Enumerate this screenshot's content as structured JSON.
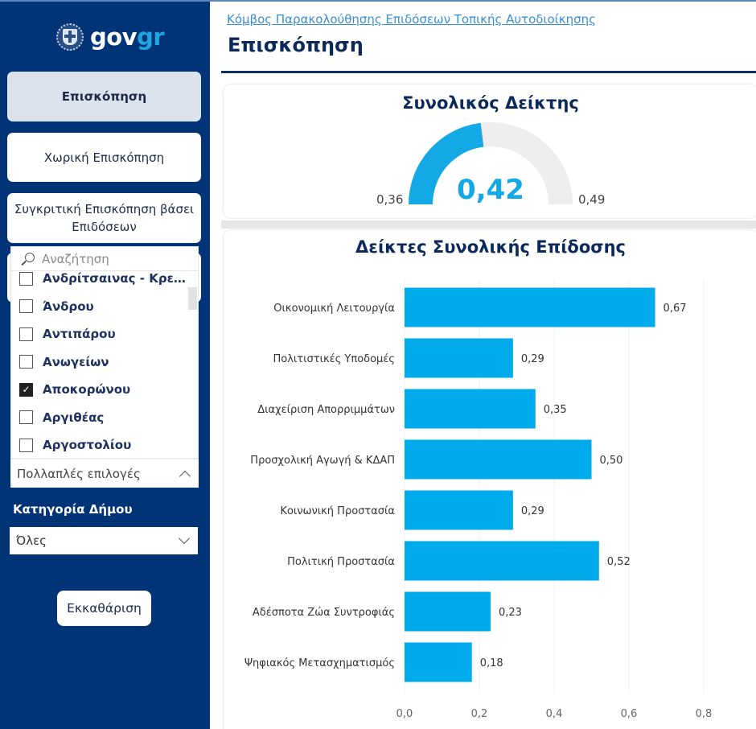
{
  "sidebar": {
    "logo": {
      "text_main": "gov",
      "text_accent": "gr",
      "emblem_icon": "greek-coat-of-arms-icon"
    },
    "nav": [
      {
        "label": "Επισκόπηση",
        "active": true
      },
      {
        "label": "Χωρική Επισκόπηση",
        "active": false
      },
      {
        "label": "Συγκριτική Επισκόπηση βάσει Επιδόσεων",
        "active": false
      }
    ],
    "municipality_slicer": {
      "search_placeholder": "Αναζήτηση",
      "items": [
        {
          "label": "Ανδρίτσαινας - Κρεσ...",
          "checked": false
        },
        {
          "label": "Άνδρου",
          "checked": false
        },
        {
          "label": "Αντιπάρου",
          "checked": false
        },
        {
          "label": "Ανωγείων",
          "checked": false
        },
        {
          "label": "Αποκορώνου",
          "checked": true
        },
        {
          "label": "Αργιθέας",
          "checked": false
        },
        {
          "label": "Αργοστολίου",
          "checked": false
        }
      ],
      "selection_summary": "Πολλαπλές επιλογές"
    },
    "category_filter": {
      "label": "Κατηγορία Δήμου",
      "selected": "Όλες"
    },
    "clear_button": "Εκκαθάριση"
  },
  "header": {
    "breadcrumb": "Κόμβος Παρακολούθησης Επιδόσεων Τοπικής Αυτοδιοίκησης",
    "title": "Επισκόπηση"
  },
  "gauge": {
    "title": "Συνολικός Δείκτης",
    "value": 0.42,
    "value_label": "0,42",
    "min": 0.36,
    "min_label": "0,36",
    "max": 0.49,
    "max_label": "0,49",
    "fill_color": "#13a8e6",
    "track_color": "#efeeee"
  },
  "chart_data": {
    "type": "bar",
    "orientation": "horizontal",
    "title": "Δείκτες Συνολικής Επίδοσης",
    "xlabel": "",
    "ylabel": "",
    "categories": [
      "Οικονομική Λειτουργία",
      "Πολιτιστικές Υποδομές",
      "Διαχείριση Απορριμμάτων",
      "Προσχολική Αγωγή & ΚΔΑΠ",
      "Κοινωνική Προστασία",
      "Πολιτική Προστασία",
      "Αδέσποτα Ζώα Συντροφιάς",
      "Ψηφιακός Μετασχηματισμός"
    ],
    "values": [
      0.67,
      0.29,
      0.35,
      0.5,
      0.29,
      0.52,
      0.23,
      0.18
    ],
    "value_labels": [
      "0,67",
      "0,29",
      "0,35",
      "0,50",
      "0,29",
      "0,52",
      "0,23",
      "0,18"
    ],
    "xlim": [
      0,
      0.8
    ],
    "xticks": [
      0,
      0.2,
      0.4,
      0.6,
      0.8
    ],
    "xtick_labels": [
      "0,0",
      "0,2",
      "0,4",
      "0,6",
      "0,8"
    ],
    "grid": true,
    "bar_color": "#00abeb"
  }
}
